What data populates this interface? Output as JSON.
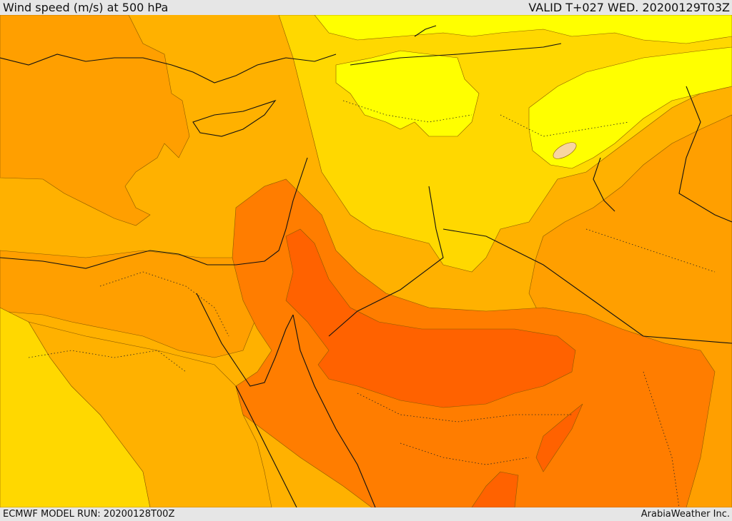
{
  "header": {
    "title": "Wind speed (m/s) at 500 hPa",
    "valid_time": "VALID T+027 WED. 20200129T03Z"
  },
  "footer": {
    "model_run": "ECMWF MODEL RUN: 20200128T00Z",
    "credit": "ArabiaWeather Inc."
  },
  "colors": {
    "band_1": "#ffff00",
    "band_2": "#ffd800",
    "band_3": "#ffb100",
    "band_4": "#ff9f00",
    "band_5": "#ff7d00",
    "band_6": "#ff6200",
    "band_7": "#f05a10",
    "light_patch": "#f8d5a0",
    "coastline": "#111111"
  }
}
